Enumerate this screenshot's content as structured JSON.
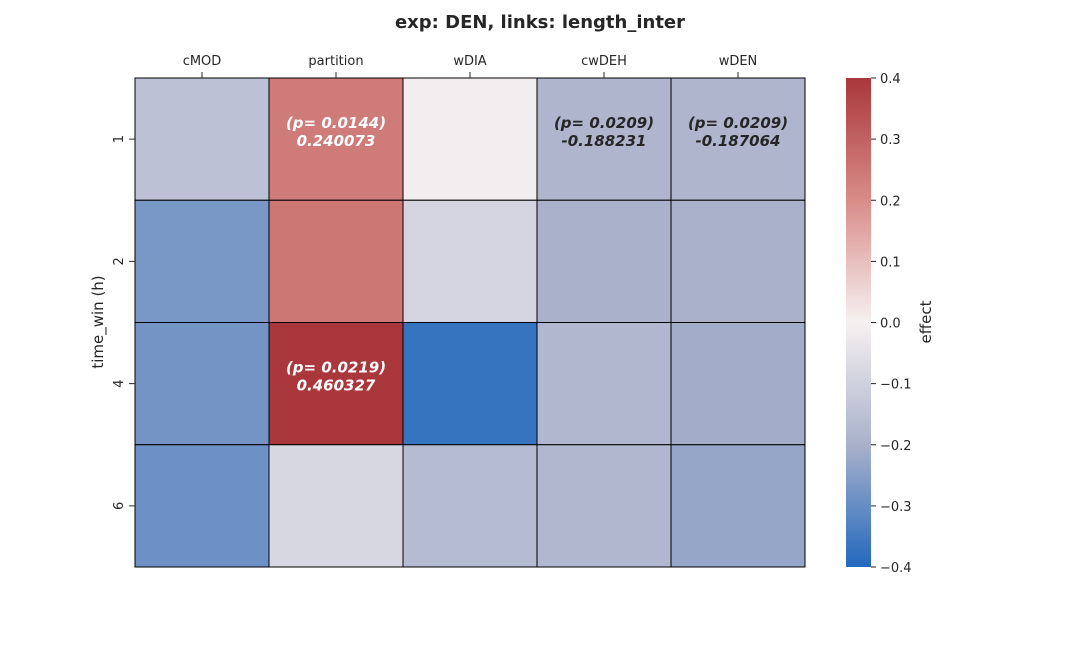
{
  "chart_data": {
    "type": "heatmap",
    "title": "exp: DEN, links: length_inter",
    "xlabel": "",
    "ylabel": "time_win (h)",
    "x_categories": [
      "cMOD",
      "partition",
      "wDIA",
      "cwDEH",
      "wDEN"
    ],
    "y_categories": [
      "1",
      "2",
      "4",
      "6"
    ],
    "values": [
      [
        -0.15,
        0.240073,
        -0.01,
        -0.188231,
        -0.187064
      ],
      [
        -0.27,
        0.25,
        -0.09,
        -0.2,
        -0.2
      ],
      [
        -0.28,
        0.460327,
        -0.37,
        -0.18,
        -0.21
      ],
      [
        -0.29,
        -0.08,
        -0.17,
        -0.18,
        -0.23
      ]
    ],
    "annotations": [
      {
        "row": 0,
        "col": 1,
        "p_text": "(p= 0.0144)",
        "value_text": "0.240073"
      },
      {
        "row": 0,
        "col": 3,
        "p_text": "(p= 0.0209)",
        "value_text": "-0.188231"
      },
      {
        "row": 0,
        "col": 4,
        "p_text": "(p= 0.0209)",
        "value_text": "-0.187064"
      },
      {
        "row": 2,
        "col": 1,
        "p_text": "(p= 0.0219)",
        "value_text": "0.460327"
      }
    ],
    "colorbar": {
      "label": "effect",
      "vmin": -0.4,
      "vmax": 0.4,
      "ticks": [
        "0.4",
        "0.3",
        "0.2",
        "0.1",
        "0.0",
        "−0.1",
        "−0.2",
        "−0.3",
        "−0.4"
      ]
    },
    "colormap": "vlag",
    "colormap_stops": [
      "#2369bd",
      "#a9b1cb",
      "#f6f1f1",
      "#d98c88",
      "#a9373b"
    ],
    "grid": false,
    "x_ticks_position": "top"
  }
}
